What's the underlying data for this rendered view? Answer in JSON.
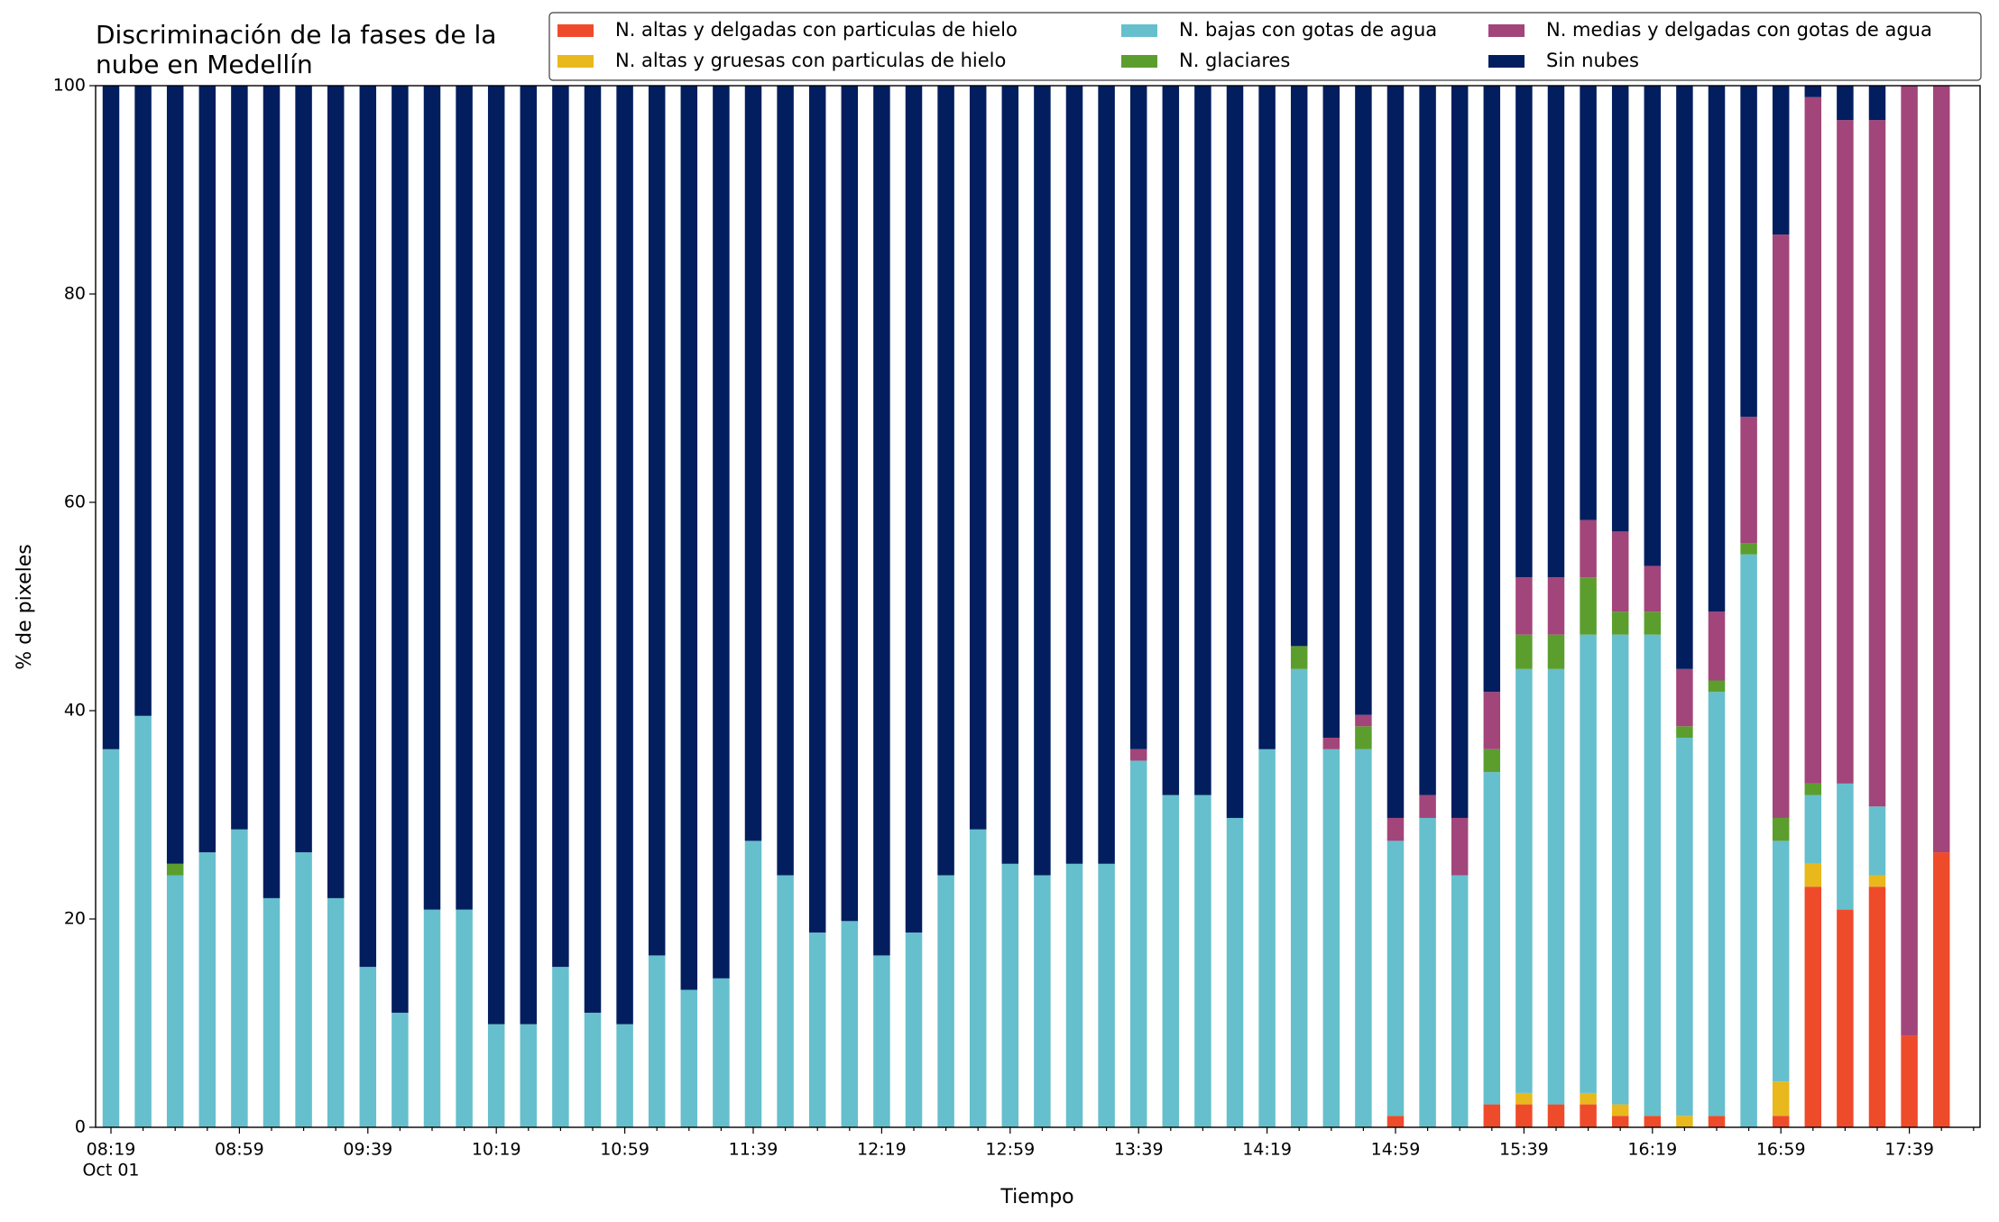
{
  "chart_data": {
    "type": "stacked_bar",
    "title": "Discriminación de la fases de la nube en Medellín",
    "x_label": "Tiempo",
    "y_label": "% de pixeles",
    "x_date_label": "Oct 01",
    "categories": [
      "08:19",
      null,
      null,
      null,
      "08:59",
      null,
      null,
      null,
      "09:39",
      null,
      null,
      null,
      "10:19",
      null,
      null,
      null,
      "10:59",
      null,
      null,
      null,
      "11:39",
      null,
      null,
      null,
      "12:19",
      null,
      null,
      null,
      "12:59",
      null,
      null,
      null,
      "13:39",
      null,
      null,
      null,
      "14:19",
      null,
      null,
      null,
      "14:59",
      null,
      null,
      null,
      "15:39",
      null,
      null,
      null,
      "16:19",
      null,
      null,
      null,
      "16:59",
      null,
      null,
      null,
      "17:39",
      null
    ],
    "ylim": [
      0,
      100
    ],
    "yticks": [
      0,
      20,
      40,
      60,
      80,
      100
    ],
    "grid": false,
    "legend": "top-right",
    "series": [
      {
        "name": "N. altas y delgadas con particulas de hielo",
        "color": "#ee4b2b",
        "values": [
          0,
          0,
          0,
          0,
          0,
          0,
          0,
          0,
          0,
          0,
          0,
          0,
          0,
          0,
          0,
          0,
          0,
          0,
          0,
          0,
          0,
          0,
          0,
          0,
          0,
          0,
          0,
          0,
          0,
          0,
          0,
          0,
          0,
          0,
          0,
          0,
          0,
          0,
          0,
          0,
          1.1,
          0,
          0,
          2.2,
          2.2,
          2.2,
          2.2,
          1.1,
          1.1,
          0,
          1.1,
          0,
          1.1,
          23.1,
          20.9,
          23.1,
          8.8,
          26.4
        ]
      },
      {
        "name": "N. altas y gruesas con particulas de hielo",
        "color": "#e8b81c",
        "values": [
          0,
          0,
          0,
          0,
          0,
          0,
          0,
          0,
          0,
          0,
          0,
          0,
          0,
          0,
          0,
          0,
          0,
          0,
          0,
          0,
          0,
          0,
          0,
          0,
          0,
          0,
          0,
          0,
          0,
          0,
          0,
          0,
          0,
          0,
          0,
          0,
          0,
          0,
          0,
          0,
          0,
          0,
          0,
          0,
          1.1,
          0,
          1.1,
          1.1,
          0,
          1.1,
          0,
          0,
          3.3,
          2.2,
          0,
          1.1,
          0,
          0
        ]
      },
      {
        "name": "N. bajas con gotas de agua",
        "color": "#66bfcc",
        "values": [
          36.3,
          39.5,
          24.2,
          26.4,
          28.6,
          22.0,
          26.4,
          22.0,
          15.4,
          11.0,
          20.9,
          20.9,
          9.9,
          9.9,
          15.4,
          11.0,
          9.9,
          16.5,
          13.2,
          14.3,
          27.5,
          24.2,
          18.7,
          19.8,
          16.5,
          18.7,
          24.2,
          28.6,
          25.3,
          24.2,
          25.3,
          25.3,
          35.2,
          31.9,
          31.9,
          29.7,
          36.3,
          44.0,
          36.3,
          36.3,
          26.4,
          29.7,
          24.2,
          31.9,
          40.7,
          41.8,
          44.0,
          45.1,
          46.2,
          36.3,
          40.7,
          55.0,
          23.1,
          6.6,
          12.1,
          6.6,
          0,
          0
        ]
      },
      {
        "name": "N. glaciares",
        "color": "#5b9e2e",
        "values": [
          0,
          0,
          1.1,
          0,
          0,
          0,
          0,
          0,
          0,
          0,
          0,
          0,
          0,
          0,
          0,
          0,
          0,
          0,
          0,
          0,
          0,
          0,
          0,
          0,
          0,
          0,
          0,
          0,
          0,
          0,
          0,
          0,
          0,
          0,
          0,
          0,
          0,
          2.2,
          0,
          2.2,
          0,
          0,
          0,
          2.2,
          3.3,
          3.3,
          5.5,
          2.2,
          2.2,
          1.1,
          1.1,
          1.1,
          2.2,
          1.1,
          0,
          0,
          0,
          0
        ]
      },
      {
        "name": "N. medias y delgadas con gotas de agua",
        "color": "#a2457a",
        "values": [
          0,
          0,
          0,
          0,
          0,
          0,
          0,
          0,
          0,
          0,
          0,
          0,
          0,
          0,
          0,
          0,
          0,
          0,
          0,
          0,
          0,
          0,
          0,
          0,
          0,
          0,
          0,
          0,
          0,
          0,
          0,
          0,
          1.1,
          0,
          0,
          0,
          0,
          0,
          1.1,
          1.1,
          2.2,
          2.2,
          5.5,
          5.5,
          5.5,
          5.5,
          5.5,
          7.7,
          4.4,
          5.5,
          6.6,
          12.1,
          56.0,
          65.9,
          63.7,
          65.9,
          91.2,
          73.6
        ]
      },
      {
        "name": "Sin nubes",
        "color": "#031e5e",
        "values": [
          63.7,
          60.5,
          74.7,
          73.6,
          71.4,
          78.0,
          73.6,
          78.0,
          84.6,
          89.0,
          79.1,
          79.1,
          90.1,
          90.1,
          84.6,
          89.0,
          90.1,
          83.5,
          86.8,
          85.7,
          72.5,
          75.8,
          81.3,
          80.2,
          83.5,
          81.3,
          75.8,
          71.4,
          74.7,
          75.8,
          74.7,
          74.7,
          63.7,
          68.1,
          68.1,
          70.3,
          63.7,
          53.8,
          62.6,
          60.4,
          70.3,
          68.1,
          70.3,
          58.2,
          47.2,
          47.2,
          41.7,
          42.8,
          46.1,
          56.0,
          50.5,
          31.8,
          14.3,
          1.1,
          3.3,
          3.3,
          0,
          0
        ]
      }
    ]
  }
}
